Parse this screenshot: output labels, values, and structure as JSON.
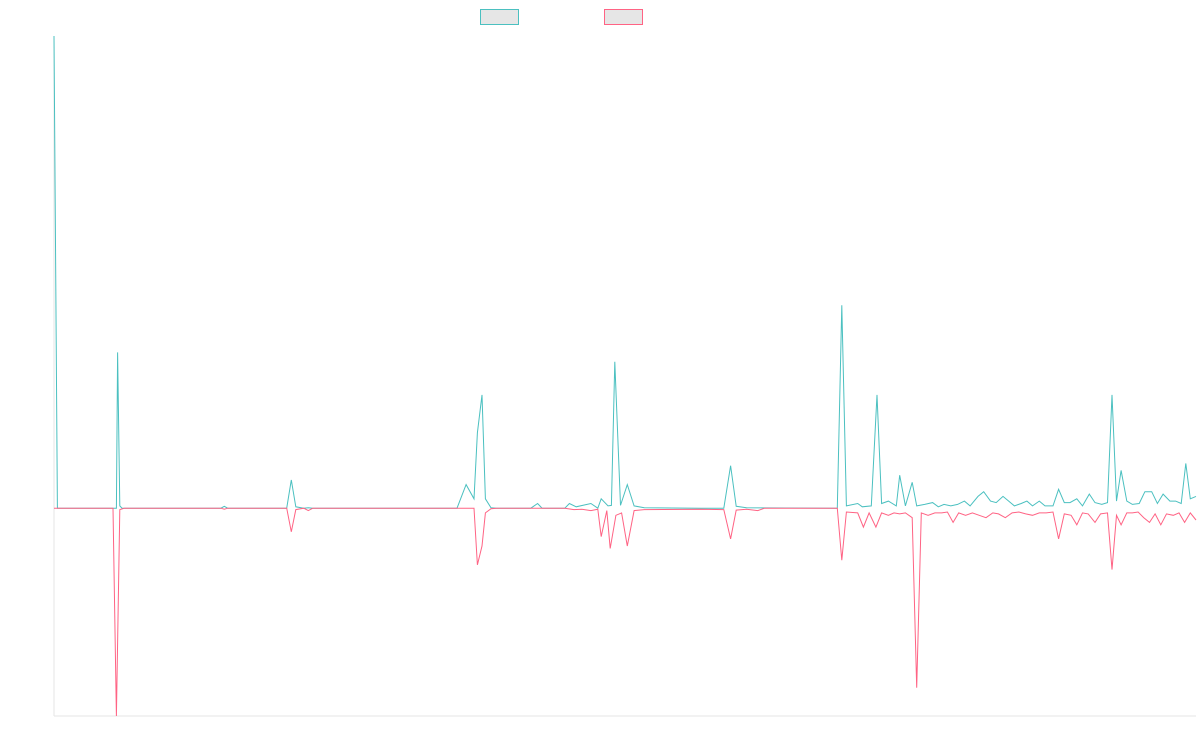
{
  "chart_data": {
    "type": "line",
    "title": "",
    "xlabel": "",
    "ylabel": "",
    "grid": false,
    "legend_position": "top",
    "series": [
      {
        "name": "",
        "color": "#4bc0c0",
        "swatch": "#e6e6e6",
        "values": [
          [
            0,
            1.0
          ],
          [
            0.3,
            0
          ],
          [
            3.1,
            0
          ],
          [
            5.5,
            0
          ],
          [
            5.6,
            0.33
          ],
          [
            5.8,
            0.005
          ],
          [
            6.0,
            0
          ],
          [
            14.7,
            0
          ],
          [
            15,
            0.004
          ],
          [
            15.3,
            0
          ],
          [
            20.5,
            0
          ],
          [
            20.9,
            0.06
          ],
          [
            21.3,
            0.003
          ],
          [
            22.0,
            0
          ],
          [
            22.4,
            0.001
          ],
          [
            22.8,
            0
          ],
          [
            35.5,
            0
          ],
          [
            36.3,
            0.05
          ],
          [
            37.0,
            0.02
          ],
          [
            37.3,
            0.16
          ],
          [
            37.7,
            0.24
          ],
          [
            38.0,
            0.02
          ],
          [
            38.5,
            0.001
          ],
          [
            39.0,
            0
          ],
          [
            42.0,
            0
          ],
          [
            42.6,
            0.01
          ],
          [
            43.0,
            0
          ],
          [
            45.0,
            0
          ],
          [
            45.4,
            0.01
          ],
          [
            46.0,
            0.003
          ],
          [
            47.3,
            0.01
          ],
          [
            47.9,
            0
          ],
          [
            48.2,
            0.02
          ],
          [
            48.8,
            0.005
          ],
          [
            49.1,
            0.006
          ],
          [
            49.4,
            0.31
          ],
          [
            49.9,
            0.006
          ],
          [
            50.5,
            0.05
          ],
          [
            51.1,
            0.005
          ],
          [
            52.0,
            0.001
          ],
          [
            57.0,
            0
          ],
          [
            59.0,
            0
          ],
          [
            59.6,
            0.09
          ],
          [
            60.1,
            0.004
          ],
          [
            61.0,
            0.001
          ],
          [
            69.0,
            0
          ],
          [
            69.4,
            0.43
          ],
          [
            69.8,
            0.005
          ],
          [
            70.8,
            0.01
          ],
          [
            71.2,
            0.003
          ],
          [
            72.0,
            0.005
          ],
          [
            72.5,
            0.24
          ],
          [
            72.9,
            0.01
          ],
          [
            73.5,
            0.015
          ],
          [
            74.2,
            0.005
          ],
          [
            74.5,
            0.07
          ],
          [
            75.0,
            0.005
          ],
          [
            75.6,
            0.055
          ],
          [
            76.0,
            0.005
          ],
          [
            76.7,
            0.008
          ],
          [
            77.4,
            0.012
          ],
          [
            77.9,
            0.003
          ],
          [
            78.4,
            0.008
          ],
          [
            79.0,
            0.005
          ],
          [
            79.6,
            0.008
          ],
          [
            80.2,
            0.015
          ],
          [
            80.7,
            0.005
          ],
          [
            81.4,
            0.025
          ],
          [
            81.9,
            0.035
          ],
          [
            82.5,
            0.015
          ],
          [
            83.0,
            0.012
          ],
          [
            83.6,
            0.025
          ],
          [
            84.1,
            0.015
          ],
          [
            84.6,
            0.005
          ],
          [
            85.2,
            0.01
          ],
          [
            85.7,
            0.015
          ],
          [
            86.2,
            0.005
          ],
          [
            86.8,
            0.015
          ],
          [
            87.3,
            0.005
          ],
          [
            88.0,
            0.005
          ],
          [
            88.5,
            0.04
          ],
          [
            89.0,
            0.012
          ],
          [
            89.5,
            0.012
          ],
          [
            90.1,
            0.02
          ],
          [
            90.6,
            0.005
          ],
          [
            91.2,
            0.03
          ],
          [
            91.7,
            0.012
          ],
          [
            92.3,
            0.008
          ],
          [
            92.8,
            0.012
          ],
          [
            93.2,
            0.24
          ],
          [
            93.6,
            0.015
          ],
          [
            94.0,
            0.08
          ],
          [
            94.5,
            0.015
          ],
          [
            95.0,
            0.008
          ],
          [
            95.6,
            0.01
          ],
          [
            96.1,
            0.035
          ],
          [
            96.7,
            0.035
          ],
          [
            97.2,
            0.01
          ],
          [
            97.7,
            0.03
          ],
          [
            98.3,
            0.015
          ],
          [
            98.8,
            0.015
          ],
          [
            99.3,
            0.01
          ],
          [
            99.7,
            0.095
          ],
          [
            100.1,
            0.02
          ],
          [
            100.6,
            0.025
          ]
        ]
      },
      {
        "name": "",
        "color": "#ff6384",
        "swatch": "#e6e6e6",
        "values": [
          [
            0,
            0
          ],
          [
            5.2,
            0
          ],
          [
            5.5,
            -0.44
          ],
          [
            5.8,
            -0.003
          ],
          [
            6.2,
            0
          ],
          [
            14.7,
            0
          ],
          [
            15,
            -0.002
          ],
          [
            15.3,
            0
          ],
          [
            20.5,
            0
          ],
          [
            20.9,
            -0.05
          ],
          [
            21.3,
            -0.003
          ],
          [
            22.0,
            0
          ],
          [
            22.4,
            -0.005
          ],
          [
            22.8,
            0
          ],
          [
            37.0,
            0
          ],
          [
            37.3,
            -0.12
          ],
          [
            37.7,
            -0.08
          ],
          [
            38.0,
            -0.01
          ],
          [
            38.5,
            -0.001
          ],
          [
            39.0,
            0
          ],
          [
            45.0,
            0
          ],
          [
            45.8,
            -0.003
          ],
          [
            46.5,
            -0.002
          ],
          [
            47.3,
            -0.005
          ],
          [
            47.9,
            -0.002
          ],
          [
            48.2,
            -0.06
          ],
          [
            48.7,
            -0.005
          ],
          [
            49.0,
            -0.085
          ],
          [
            49.5,
            -0.015
          ],
          [
            50.0,
            -0.01
          ],
          [
            50.5,
            -0.08
          ],
          [
            51.1,
            -0.005
          ],
          [
            52.0,
            -0.003
          ],
          [
            57.0,
            -0.002
          ],
          [
            59.0,
            -0.003
          ],
          [
            59.6,
            -0.065
          ],
          [
            60.1,
            -0.004
          ],
          [
            61.0,
            -0.002
          ],
          [
            62.0,
            -0.005
          ],
          [
            62.6,
            0
          ],
          [
            69.0,
            0
          ],
          [
            69.4,
            -0.11
          ],
          [
            69.8,
            -0.008
          ],
          [
            70.8,
            -0.01
          ],
          [
            71.3,
            -0.04
          ],
          [
            71.8,
            -0.01
          ],
          [
            72.4,
            -0.04
          ],
          [
            72.9,
            -0.01
          ],
          [
            73.5,
            -0.015
          ],
          [
            74.0,
            -0.01
          ],
          [
            74.5,
            -0.012
          ],
          [
            75.0,
            -0.01
          ],
          [
            75.6,
            -0.02
          ],
          [
            76.0,
            -0.38
          ],
          [
            76.4,
            -0.01
          ],
          [
            77.0,
            -0.015
          ],
          [
            77.6,
            -0.01
          ],
          [
            78.2,
            -0.01
          ],
          [
            78.7,
            -0.008
          ],
          [
            79.2,
            -0.03
          ],
          [
            79.7,
            -0.01
          ],
          [
            80.3,
            -0.015
          ],
          [
            80.9,
            -0.01
          ],
          [
            81.5,
            -0.015
          ],
          [
            82.1,
            -0.02
          ],
          [
            82.7,
            -0.01
          ],
          [
            83.2,
            -0.012
          ],
          [
            83.8,
            -0.02
          ],
          [
            84.4,
            -0.01
          ],
          [
            85.0,
            -0.008
          ],
          [
            85.6,
            -0.012
          ],
          [
            86.2,
            -0.015
          ],
          [
            86.8,
            -0.01
          ],
          [
            87.4,
            -0.01
          ],
          [
            88.0,
            -0.008
          ],
          [
            88.5,
            -0.065
          ],
          [
            89.0,
            -0.012
          ],
          [
            89.6,
            -0.015
          ],
          [
            90.1,
            -0.035
          ],
          [
            90.6,
            -0.01
          ],
          [
            91.1,
            -0.012
          ],
          [
            91.7,
            -0.03
          ],
          [
            92.2,
            -0.012
          ],
          [
            92.8,
            -0.01
          ],
          [
            93.2,
            -0.13
          ],
          [
            93.6,
            -0.015
          ],
          [
            94.0,
            -0.035
          ],
          [
            94.5,
            -0.01
          ],
          [
            95.0,
            -0.01
          ],
          [
            95.5,
            -0.008
          ],
          [
            96.0,
            -0.02
          ],
          [
            96.5,
            -0.03
          ],
          [
            97.0,
            -0.012
          ],
          [
            97.5,
            -0.035
          ],
          [
            98.0,
            -0.012
          ],
          [
            98.6,
            -0.015
          ],
          [
            99.1,
            -0.01
          ],
          [
            99.6,
            -0.03
          ],
          [
            100.1,
            -0.01
          ],
          [
            100.6,
            -0.025
          ]
        ]
      }
    ],
    "xlim": [
      0,
      100.6
    ],
    "ylim": [
      -0.44,
      1.0
    ]
  }
}
